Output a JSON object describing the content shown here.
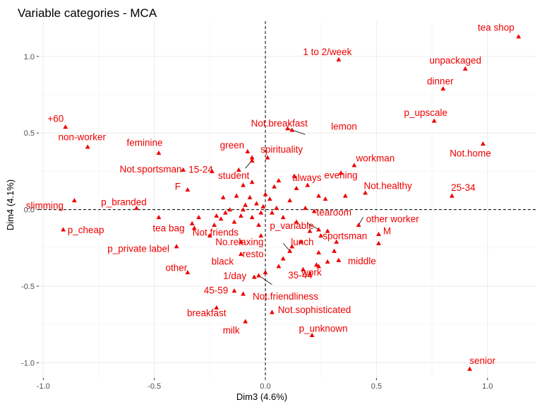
{
  "chart_data": {
    "type": "scatter",
    "title": "Variable categories - MCA",
    "xlabel": "Dim3 (4.6%)",
    "ylabel": "Dim4 (4.1%)",
    "xlim": [
      -1.02,
      1.22
    ],
    "ylim": [
      -1.1,
      1.23
    ],
    "xticks": [
      -1.0,
      -0.5,
      0.0,
      0.5,
      1.0
    ],
    "xtick_labels": [
      "-1.0",
      "-0.5",
      "0.0",
      "0.5",
      "1.0"
    ],
    "yticks": [
      -1.0,
      -0.5,
      0.0,
      0.5,
      1.0
    ],
    "ytick_labels": [
      "-1.0",
      "-0.5",
      "0.0",
      "0.5",
      "1.0"
    ],
    "grid": true,
    "reference_lines": {
      "x": 0,
      "y": 0
    },
    "color": "#ee0000",
    "labeled_points": [
      {
        "label": "tea shop",
        "x": 1.14,
        "y": 1.13
      },
      {
        "label": "1 to 2/week",
        "x": 0.33,
        "y": 0.98
      },
      {
        "label": "unpackaged",
        "x": 0.9,
        "y": 0.92
      },
      {
        "label": "dinner",
        "x": 0.8,
        "y": 0.79
      },
      {
        "label": "p_upscale",
        "x": 0.76,
        "y": 0.58
      },
      {
        "label": "Not.home",
        "x": 0.98,
        "y": 0.43
      },
      {
        "label": "+60",
        "x": -0.9,
        "y": 0.54
      },
      {
        "label": "non-worker",
        "x": -0.8,
        "y": 0.41
      },
      {
        "label": "feminine",
        "x": -0.48,
        "y": 0.37
      },
      {
        "label": "Not.breakfast",
        "x": 0.12,
        "y": 0.52
      },
      {
        "label": "lemon",
        "x": 0.1,
        "y": 0.53
      },
      {
        "label": "green",
        "x": -0.08,
        "y": 0.38
      },
      {
        "label": "spirituality",
        "x": 0.01,
        "y": 0.34
      },
      {
        "label": "Not.sportsman",
        "x": -0.37,
        "y": 0.26
      },
      {
        "label": "student",
        "x": -0.06,
        "y": 0.32
      },
      {
        "label": "always",
        "x": 0.13,
        "y": 0.22
      },
      {
        "label": "workman",
        "x": 0.4,
        "y": 0.29
      },
      {
        "label": "15-24",
        "x": -0.24,
        "y": 0.25
      },
      {
        "label": "evening",
        "x": 0.34,
        "y": 0.24
      },
      {
        "label": "Not.healthy",
        "x": 0.45,
        "y": 0.11
      },
      {
        "label": "25-34",
        "x": 0.84,
        "y": 0.09
      },
      {
        "label": "F",
        "x": -0.35,
        "y": 0.13
      },
      {
        "label": "p_branded",
        "x": -0.58,
        "y": 0.01
      },
      {
        "label": "slimming",
        "x": -0.86,
        "y": 0.06
      },
      {
        "label": "tearoom",
        "x": 0.22,
        "y": -0.01
      },
      {
        "label": "other worker",
        "x": 0.42,
        "y": -0.1
      },
      {
        "label": "p_cheap",
        "x": -0.91,
        "y": -0.13
      },
      {
        "label": "tea bag",
        "x": -0.48,
        "y": -0.05
      },
      {
        "label": "p_variable",
        "x": 0.24,
        "y": -0.13
      },
      {
        "label": "M",
        "x": 0.51,
        "y": -0.16
      },
      {
        "label": "sportsman",
        "x": 0.25,
        "y": -0.17
      },
      {
        "label": "lunch",
        "x": 0.16,
        "y": -0.21
      },
      {
        "label": "No.relaxing",
        "x": -0.11,
        "y": -0.21
      },
      {
        "label": "p_private label",
        "x": -0.4,
        "y": -0.24
      },
      {
        "label": "Not.friends",
        "x": -0.25,
        "y": -0.17
      },
      {
        "label": "resto",
        "x": 0.11,
        "y": -0.27
      },
      {
        "label": "black",
        "x": -0.11,
        "y": -0.29
      },
      {
        "label": "middle",
        "x": 0.33,
        "y": -0.33
      },
      {
        "label": "other",
        "x": -0.35,
        "y": -0.41
      },
      {
        "label": "1/day",
        "x": -0.03,
        "y": -0.43
      },
      {
        "label": "35-44",
        "x": 0.17,
        "y": -0.39
      },
      {
        "label": "work",
        "x": 0.24,
        "y": -0.37
      },
      {
        "label": "45-59",
        "x": -0.14,
        "y": -0.53
      },
      {
        "label": "Not.friendliness",
        "x": -0.1,
        "y": -0.55
      },
      {
        "label": "breakfast",
        "x": -0.22,
        "y": -0.64
      },
      {
        "label": "Not.sophisticated",
        "x": 0.03,
        "y": -0.67
      },
      {
        "label": "milk",
        "x": -0.09,
        "y": -0.73
      },
      {
        "label": "p_unknown",
        "x": 0.21,
        "y": -0.82
      },
      {
        "label": "senior",
        "x": 0.92,
        "y": -1.04
      }
    ],
    "unlabeled_points": [
      {
        "x": -0.06,
        "y": 0.34
      },
      {
        "x": -0.12,
        "y": 0.26
      },
      {
        "x": -0.1,
        "y": 0.16
      },
      {
        "x": -0.06,
        "y": 0.18
      },
      {
        "x": 0.04,
        "y": 0.15
      },
      {
        "x": 0.06,
        "y": 0.19
      },
      {
        "x": 0.14,
        "y": 0.14
      },
      {
        "x": 0.19,
        "y": 0.16
      },
      {
        "x": 0.24,
        "y": 0.09
      },
      {
        "x": 0.36,
        "y": 0.09
      },
      {
        "x": 0.27,
        "y": 0.07
      },
      {
        "x": 0.11,
        "y": 0.06
      },
      {
        "x": 0.0,
        "y": 0.1
      },
      {
        "x": -0.07,
        "y": 0.08
      },
      {
        "x": -0.13,
        "y": 0.09
      },
      {
        "x": -0.19,
        "y": 0.08
      },
      {
        "x": -0.04,
        "y": 0.04
      },
      {
        "x": -0.09,
        "y": 0.03
      },
      {
        "x": -0.16,
        "y": 0.0
      },
      {
        "x": -0.22,
        "y": -0.04
      },
      {
        "x": -0.18,
        "y": -0.02
      },
      {
        "x": -0.11,
        "y": -0.04
      },
      {
        "x": -0.06,
        "y": -0.05
      },
      {
        "x": -0.03,
        "y": -0.1
      },
      {
        "x": 0.03,
        "y": -0.02
      },
      {
        "x": 0.08,
        "y": -0.05
      },
      {
        "x": 0.14,
        "y": -0.08
      },
      {
        "x": -0.01,
        "y": 0.02
      },
      {
        "x": 0.02,
        "y": 0.07
      },
      {
        "x": 0.05,
        "y": 0.01
      },
      {
        "x": -0.3,
        "y": -0.05
      },
      {
        "x": -0.33,
        "y": -0.09
      },
      {
        "x": -0.32,
        "y": -0.12
      },
      {
        "x": -0.23,
        "y": -0.1
      },
      {
        "x": -0.2,
        "y": -0.06
      },
      {
        "x": 0.12,
        "y": -0.24
      },
      {
        "x": 0.24,
        "y": -0.28
      },
      {
        "x": 0.31,
        "y": -0.27
      },
      {
        "x": 0.28,
        "y": -0.34
      },
      {
        "x": 0.2,
        "y": -0.42
      },
      {
        "x": 0.23,
        "y": -0.36
      },
      {
        "x": 0.08,
        "y": -0.32
      },
      {
        "x": 0.06,
        "y": -0.37
      },
      {
        "x": 0.0,
        "y": -0.41
      },
      {
        "x": 0.32,
        "y": -0.21
      },
      {
        "x": 0.28,
        "y": -0.14
      },
      {
        "x": 0.2,
        "y": -0.14
      },
      {
        "x": 0.51,
        "y": -0.22
      },
      {
        "x": -0.05,
        "y": -0.44
      },
      {
        "x": -0.02,
        "y": -0.17
      },
      {
        "x": -0.1,
        "y": 0.0
      },
      {
        "x": -0.14,
        "y": -0.08
      },
      {
        "x": 0.18,
        "y": 0.01
      },
      {
        "x": -0.02,
        "y": -0.02
      }
    ],
    "leader_lines": [
      {
        "from": {
          "x": 0.1,
          "y": 0.53
        },
        "to": {
          "x": 0.18,
          "y": 0.49
        }
      },
      {
        "from": {
          "x": -0.06,
          "y": 0.32
        },
        "to": {
          "x": -0.09,
          "y": 0.27
        }
      },
      {
        "from": {
          "x": 0.24,
          "y": -0.13
        },
        "to": {
          "x": 0.19,
          "y": -0.09
        }
      },
      {
        "from": {
          "x": 0.42,
          "y": -0.1
        },
        "to": {
          "x": 0.44,
          "y": -0.05
        }
      },
      {
        "from": {
          "x": 0.11,
          "y": -0.27
        },
        "to": {
          "x": 0.08,
          "y": -0.22
        }
      },
      {
        "from": {
          "x": -0.03,
          "y": -0.43
        },
        "to": {
          "x": 0.03,
          "y": -0.49
        }
      }
    ]
  }
}
